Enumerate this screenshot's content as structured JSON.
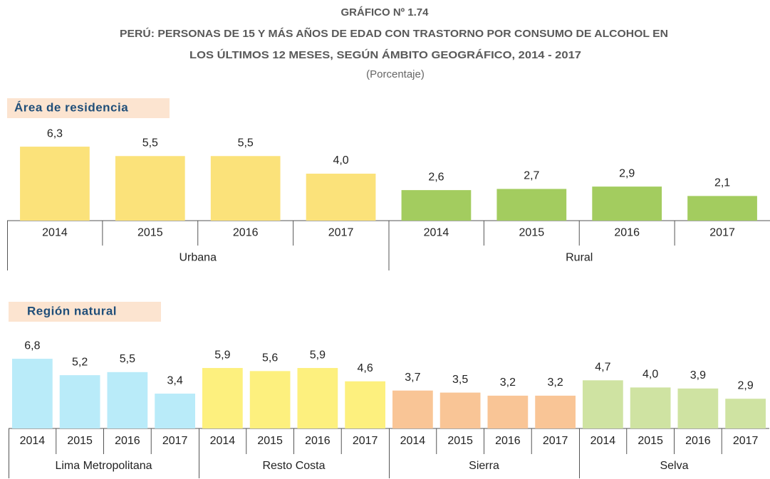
{
  "chart_data": [
    {
      "type": "bar",
      "title": [
        "GRÁFICO Nº 1.74",
        "PERÚ: PERSONAS DE 15 Y MÁS AÑOS DE EDAD CON TRASTORNO POR CONSUMO DE ALCOHOL EN",
        "LOS ÚLTIMOS 12 MESES, SEGÚN ÁMBITO GEOGRÁFICO, 2014 - 2017"
      ],
      "subtitle": "(Porcentaje)",
      "label": "Área de residencia",
      "categories": [
        "2014",
        "2015",
        "2016",
        "2017"
      ],
      "series": [
        {
          "name": "Urbana",
          "color": "#fbe27a",
          "values": [
            6.3,
            5.5,
            5.5,
            4.0
          ],
          "value_labels": [
            "6,3",
            "5,5",
            "5,5",
            "4,0"
          ]
        },
        {
          "name": "Rural",
          "color": "#a3cc5f",
          "values": [
            2.6,
            2.7,
            2.9,
            2.1
          ],
          "value_labels": [
            "2,6",
            "2,7",
            "2,9",
            "2,1"
          ]
        }
      ]
    },
    {
      "type": "bar",
      "label": "Región natural",
      "categories": [
        "2014",
        "2015",
        "2016",
        "2017"
      ],
      "series": [
        {
          "name": "Lima Metropolitana",
          "color": "#b9ebf9",
          "values": [
            6.8,
            5.2,
            5.5,
            3.4
          ],
          "value_labels": [
            "6,8",
            "5,2",
            "5,5",
            "3,4"
          ]
        },
        {
          "name": "Resto Costa",
          "color": "#fdf07e",
          "values": [
            5.9,
            5.6,
            5.9,
            4.6
          ],
          "value_labels": [
            "5,9",
            "5,6",
            "5,9",
            "4,6"
          ]
        },
        {
          "name": "Sierra",
          "color": "#f9c596",
          "values": [
            3.7,
            3.5,
            3.2,
            3.2
          ],
          "value_labels": [
            "3,7",
            "3,5",
            "3,2",
            "3,2"
          ]
        },
        {
          "name": "Selva",
          "color": "#cfe3a2",
          "values": [
            4.7,
            4.0,
            3.9,
            2.9
          ],
          "value_labels": [
            "4,7",
            "4,0",
            "3,9",
            "2,9"
          ]
        }
      ]
    }
  ]
}
